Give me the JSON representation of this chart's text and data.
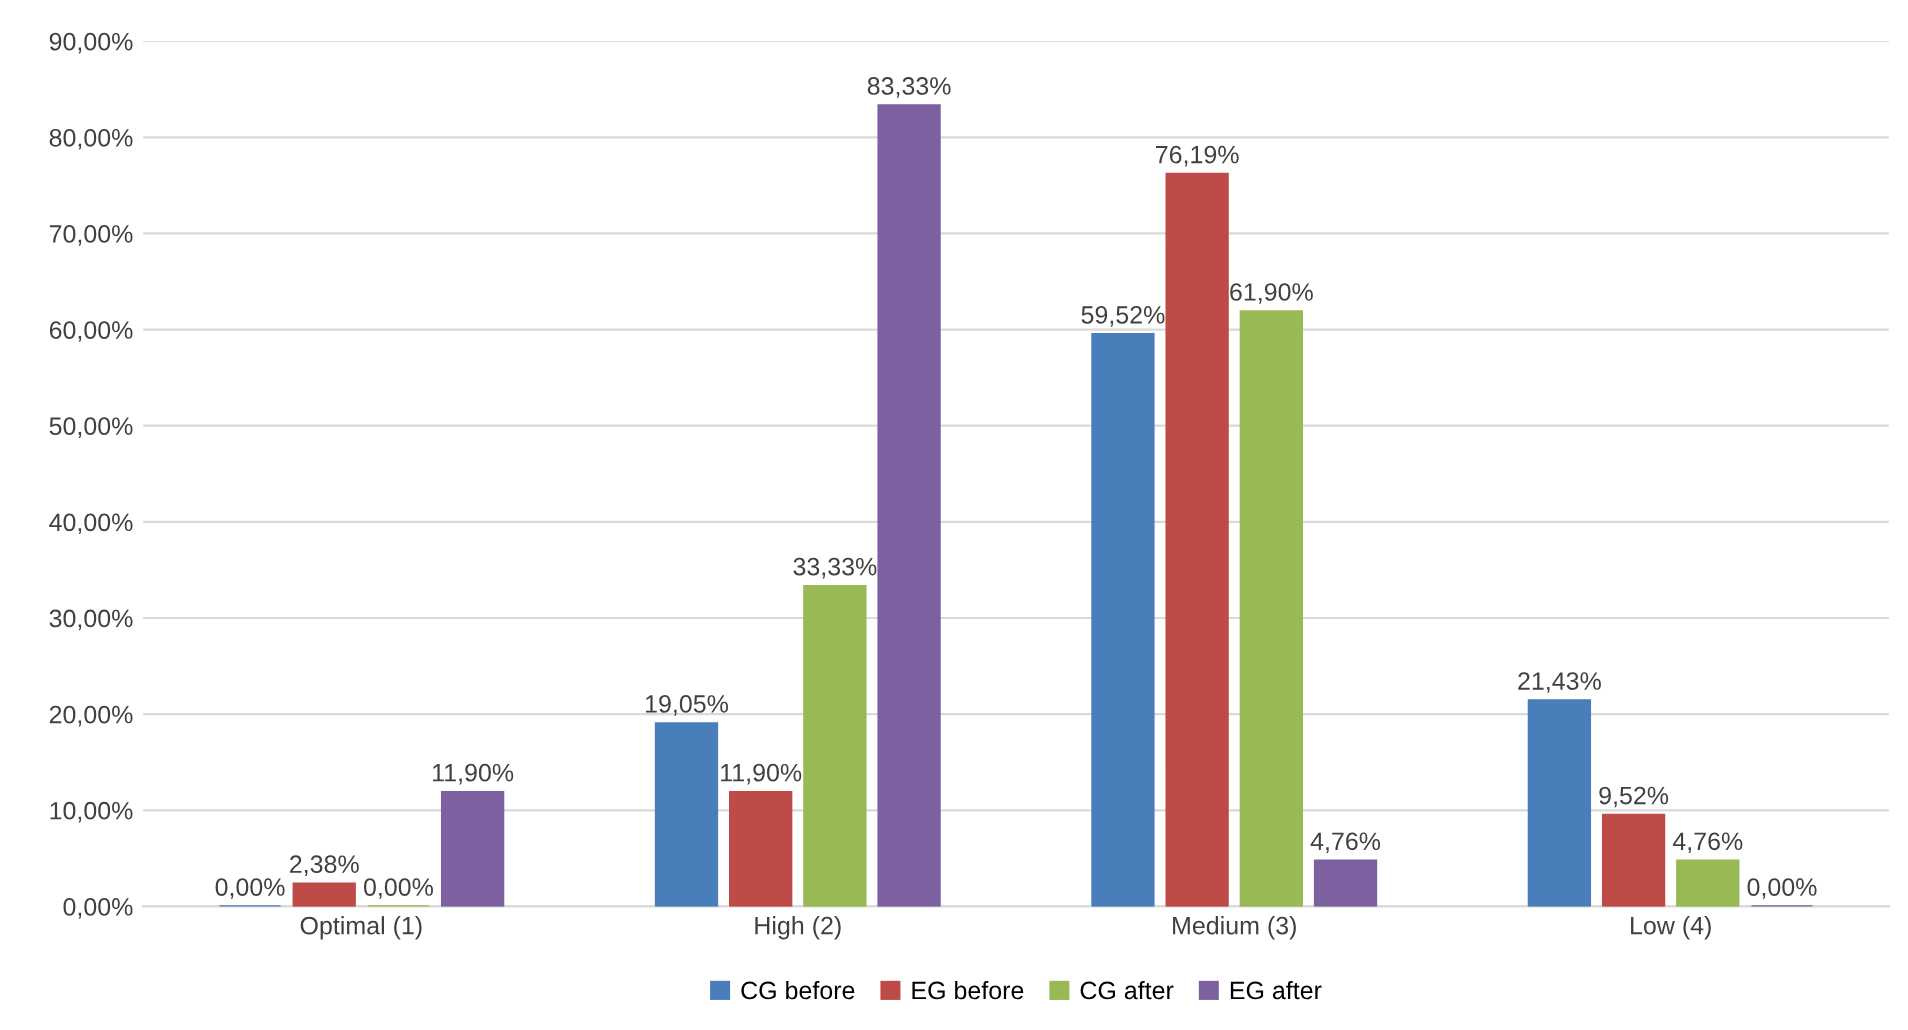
{
  "chart_data": {
    "type": "bar",
    "categories": [
      "Optimal (1)",
      "High (2)",
      "Medium (3)",
      "Low (4)"
    ],
    "series": [
      {
        "name": "CG before",
        "color": "#4a7ebb",
        "values": [
          0.0,
          19.05,
          59.52,
          21.43
        ],
        "value_labels": [
          "0,00%",
          "19,05%",
          "59,52%",
          "21,43%"
        ]
      },
      {
        "name": "EG before",
        "color": "#be4b48",
        "values": [
          2.38,
          11.9,
          76.19,
          9.52
        ],
        "value_labels": [
          "2,38%",
          "11,90%",
          "76,19%",
          "9,52%"
        ]
      },
      {
        "name": "CG after",
        "color": "#98b954",
        "values": [
          0.0,
          33.33,
          61.9,
          4.76
        ],
        "value_labels": [
          "0,00%",
          "33,33%",
          "61,90%",
          "4,76%"
        ]
      },
      {
        "name": "EG after",
        "color": "#7d60a0",
        "values": [
          11.9,
          83.33,
          4.76,
          0.0
        ],
        "value_labels": [
          "11,90%",
          "83,33%",
          "4,76%",
          "0,00%"
        ]
      }
    ],
    "ylim": [
      0,
      90
    ],
    "yticks": [
      {
        "value": 0,
        "label": "0,00%"
      },
      {
        "value": 10,
        "label": "10,00%"
      },
      {
        "value": 20,
        "label": "20,00%"
      },
      {
        "value": 30,
        "label": "30,00%"
      },
      {
        "value": 40,
        "label": "40,00%"
      },
      {
        "value": 50,
        "label": "50,00%"
      },
      {
        "value": 60,
        "label": "60,00%"
      },
      {
        "value": 70,
        "label": "70,00%"
      },
      {
        "value": 80,
        "label": "80,00%"
      },
      {
        "value": 90,
        "label": "90,00%"
      }
    ],
    "grid": "y",
    "legend": "bottom"
  }
}
